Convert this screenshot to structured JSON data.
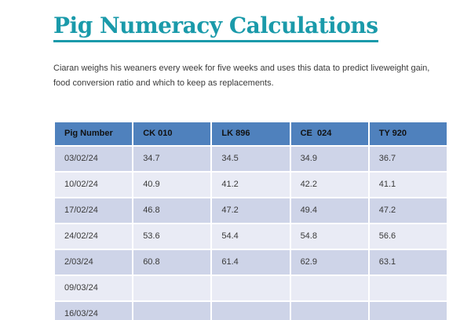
{
  "page": {
    "title": "Pig Numeracy Calculations",
    "intro": "Ciaran weighs his weaners every week for five weeks and uses this data to predict liveweight gain, food conversion ratio and which to keep as replacements."
  },
  "colors": {
    "title_teal": "#1A9AAA",
    "table_header_blue": "#4F81BD",
    "row_band_dark": "#CED4E8",
    "row_band_light": "#E9EBF5"
  },
  "table": {
    "headers": [
      "Pig Number",
      "CK 010",
      "LK 896",
      "CE  024",
      "TY 920"
    ],
    "rows": [
      {
        "cells": [
          "03/02/24",
          "34.7",
          "34.5",
          "34.9",
          "36.7"
        ]
      },
      {
        "cells": [
          "10/02/24",
          "40.9",
          "41.2",
          "42.2",
          "41.1"
        ]
      },
      {
        "cells": [
          "17/02/24",
          "46.8",
          "47.2",
          "49.4",
          "47.2"
        ]
      },
      {
        "cells": [
          "24/02/24",
          "53.6",
          "54.4",
          "54.8",
          "56.6"
        ]
      },
      {
        "cells": [
          "2/03/24",
          "60.8",
          "61.4",
          "62.9",
          "63.1"
        ]
      },
      {
        "cells": [
          "09/03/24",
          "",
          "",
          "",
          ""
        ]
      },
      {
        "cells": [
          "16/03/24",
          "",
          "",
          "",
          ""
        ]
      }
    ]
  }
}
